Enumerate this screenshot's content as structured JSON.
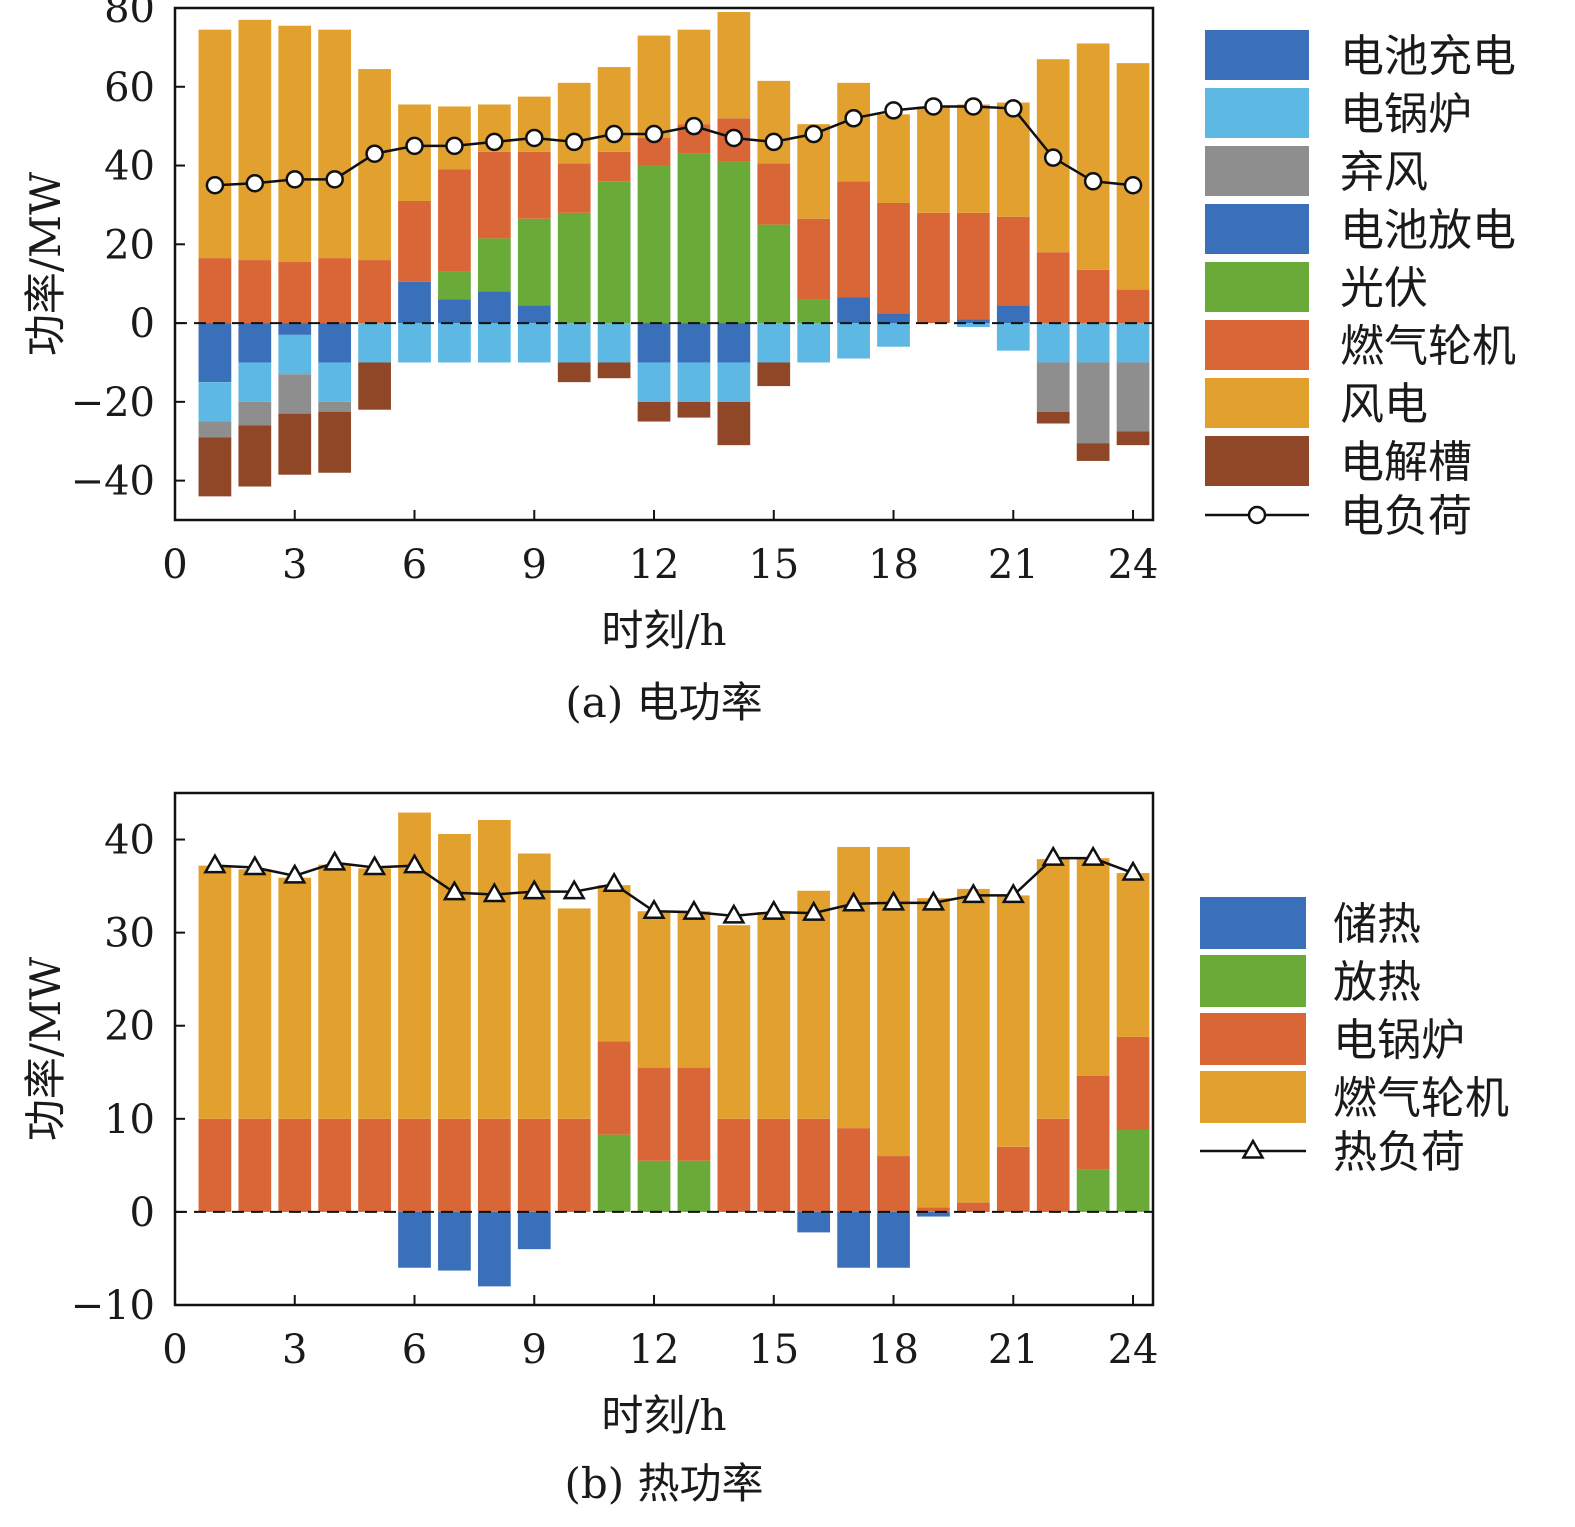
{
  "chart_data": [
    {
      "type": "bar",
      "stacked": true,
      "caption": "(a) 电功率",
      "xlabel": "时刻/h",
      "ylabel": "功率/MW",
      "xlim": [
        0,
        24.5
      ],
      "ylim": [
        -50,
        80
      ],
      "xticks": [
        0,
        3,
        6,
        9,
        12,
        15,
        18,
        21,
        24
      ],
      "yticks": [
        -40,
        -20,
        0,
        20,
        40,
        60,
        80
      ],
      "ytick_labels": [
        "−40",
        "−20",
        "0",
        "20",
        "40",
        "60",
        "80"
      ],
      "x": [
        1,
        2,
        3,
        4,
        5,
        6,
        7,
        8,
        9,
        10,
        11,
        12,
        13,
        14,
        15,
        16,
        17,
        18,
        19,
        20,
        21,
        22,
        23,
        24
      ],
      "legend_position": "right",
      "zero_line": "dashed",
      "series": [
        {
          "name": "电池充电",
          "color": "#3a6fba",
          "values": [
            -15,
            -10,
            -3,
            -10,
            0,
            0,
            0,
            0,
            0,
            0,
            0,
            -10,
            -10,
            -10,
            0,
            0,
            0,
            0,
            0,
            0,
            0,
            0,
            0,
            0
          ]
        },
        {
          "name": "电锅炉",
          "color": "#5db8e3",
          "values": [
            -10,
            -10,
            -10,
            -10,
            -10,
            -10,
            -10,
            -10,
            -10,
            -10,
            -10,
            -10,
            -10,
            -10,
            -10,
            -10,
            -9,
            -6,
            0,
            -1,
            -7,
            -10,
            -10,
            -10
          ]
        },
        {
          "name": "弃风",
          "color": "#8e8e8e",
          "values": [
            -4,
            -6,
            -10,
            -2.5,
            0,
            0,
            0,
            0,
            0,
            0,
            0,
            0,
            0,
            0,
            0,
            0,
            0,
            0,
            0,
            0,
            0,
            -12.5,
            -20.5,
            -17.5
          ]
        },
        {
          "name": "电池放电",
          "color": "#3a6fba",
          "values": [
            0,
            0,
            0,
            0,
            0,
            10.5,
            6,
            8,
            4.5,
            0,
            0,
            0,
            0,
            0,
            0,
            0,
            6.5,
            2.5,
            0,
            1,
            4.5,
            0,
            0,
            0
          ]
        },
        {
          "name": "光伏",
          "color": "#6aaa38",
          "values": [
            0,
            0,
            0,
            0,
            0,
            0,
            7,
            13.5,
            22,
            28,
            36,
            40,
            43,
            41,
            25,
            6,
            0,
            0,
            0,
            0,
            0,
            0,
            0,
            0
          ]
        },
        {
          "name": "燃气轮机",
          "color": "#d96636",
          "values": [
            16.5,
            16,
            15.5,
            16.5,
            16,
            20.5,
            26,
            22,
            17,
            12.5,
            7.5,
            7,
            7.5,
            11,
            15.5,
            20.5,
            29.5,
            28,
            28,
            27,
            22.5,
            18,
            13.5,
            8.5
          ]
        },
        {
          "name": "风电",
          "color": "#e2a12f",
          "values": [
            58,
            61,
            60,
            58,
            48.5,
            24.5,
            16,
            12,
            14,
            20.5,
            21.5,
            26,
            24,
            27,
            21,
            24,
            25,
            22.5,
            27,
            27.5,
            29,
            49,
            57.5,
            57.5
          ]
        },
        {
          "name": "电解槽",
          "color": "#8f4727",
          "values": [
            -15,
            -15.5,
            -15.5,
            -15.5,
            -12,
            0,
            0,
            0,
            0,
            -5,
            -4,
            -5,
            -4,
            -11,
            -6,
            0,
            0,
            0,
            0,
            0,
            0,
            -3,
            -4.5,
            -3.5
          ]
        }
      ],
      "line": {
        "name": "电负荷",
        "marker": "circle",
        "values": [
          35,
          35.5,
          36.5,
          36.5,
          43,
          45,
          45,
          46,
          47,
          46,
          48,
          48,
          50,
          47,
          46,
          48,
          52,
          54,
          55,
          55,
          54.5,
          42,
          36,
          35
        ]
      }
    },
    {
      "type": "bar",
      "stacked": true,
      "caption": "(b) 热功率",
      "xlabel": "时刻/h",
      "ylabel": "功率/MW",
      "xlim": [
        0,
        24.5
      ],
      "ylim": [
        -10,
        45
      ],
      "xticks": [
        0,
        3,
        6,
        9,
        12,
        15,
        18,
        21,
        24
      ],
      "yticks": [
        -10,
        0,
        10,
        20,
        30,
        40
      ],
      "ytick_labels": [
        "−10",
        "0",
        "10",
        "20",
        "30",
        "40"
      ],
      "x": [
        1,
        2,
        3,
        4,
        5,
        6,
        7,
        8,
        9,
        10,
        11,
        12,
        13,
        14,
        15,
        16,
        17,
        18,
        19,
        20,
        21,
        22,
        23,
        24
      ],
      "legend_position": "right",
      "zero_line": "dashed",
      "series": [
        {
          "name": "储热",
          "color": "#3a6fba",
          "values": [
            0,
            0,
            0,
            0,
            0,
            -6,
            -6.3,
            -8,
            -4,
            0,
            0,
            0,
            0,
            0,
            0,
            -2.2,
            -6,
            -6,
            -0.5,
            0,
            0,
            0,
            0,
            0
          ]
        },
        {
          "name": "放热",
          "color": "#6aaa38",
          "values": [
            0,
            0,
            0,
            0,
            0,
            0,
            0,
            0,
            0,
            0,
            8.3,
            5.5,
            5.5,
            0,
            0,
            0,
            0,
            0,
            0,
            0,
            0,
            0,
            4.6,
            8.8
          ]
        },
        {
          "name": "电锅炉",
          "color": "#d96636",
          "values": [
            10,
            10,
            10,
            10,
            10,
            10,
            10,
            10,
            10,
            10,
            10,
            10,
            10,
            10,
            10,
            10,
            9,
            6,
            0.5,
            1,
            7,
            10,
            10,
            10
          ]
        },
        {
          "name": "燃气轮机",
          "color": "#e2a12f",
          "values": [
            27.2,
            26.8,
            25.9,
            27.3,
            26.9,
            32.9,
            30.6,
            32.1,
            28.5,
            22.6,
            16.8,
            16.8,
            16.8,
            20.8,
            22.2,
            24.5,
            30.2,
            33.2,
            33.2,
            33.7,
            27,
            27.9,
            23.4,
            17.6
          ]
        }
      ],
      "line": {
        "name": "热负荷",
        "marker": "triangle",
        "values": [
          37.2,
          37,
          36.1,
          37.5,
          37,
          37.2,
          34.3,
          34.1,
          34.4,
          34.4,
          35.2,
          32.3,
          32.2,
          31.8,
          32.2,
          32.1,
          33.1,
          33.2,
          33.2,
          34,
          34,
          38,
          38,
          36.4
        ]
      }
    }
  ]
}
